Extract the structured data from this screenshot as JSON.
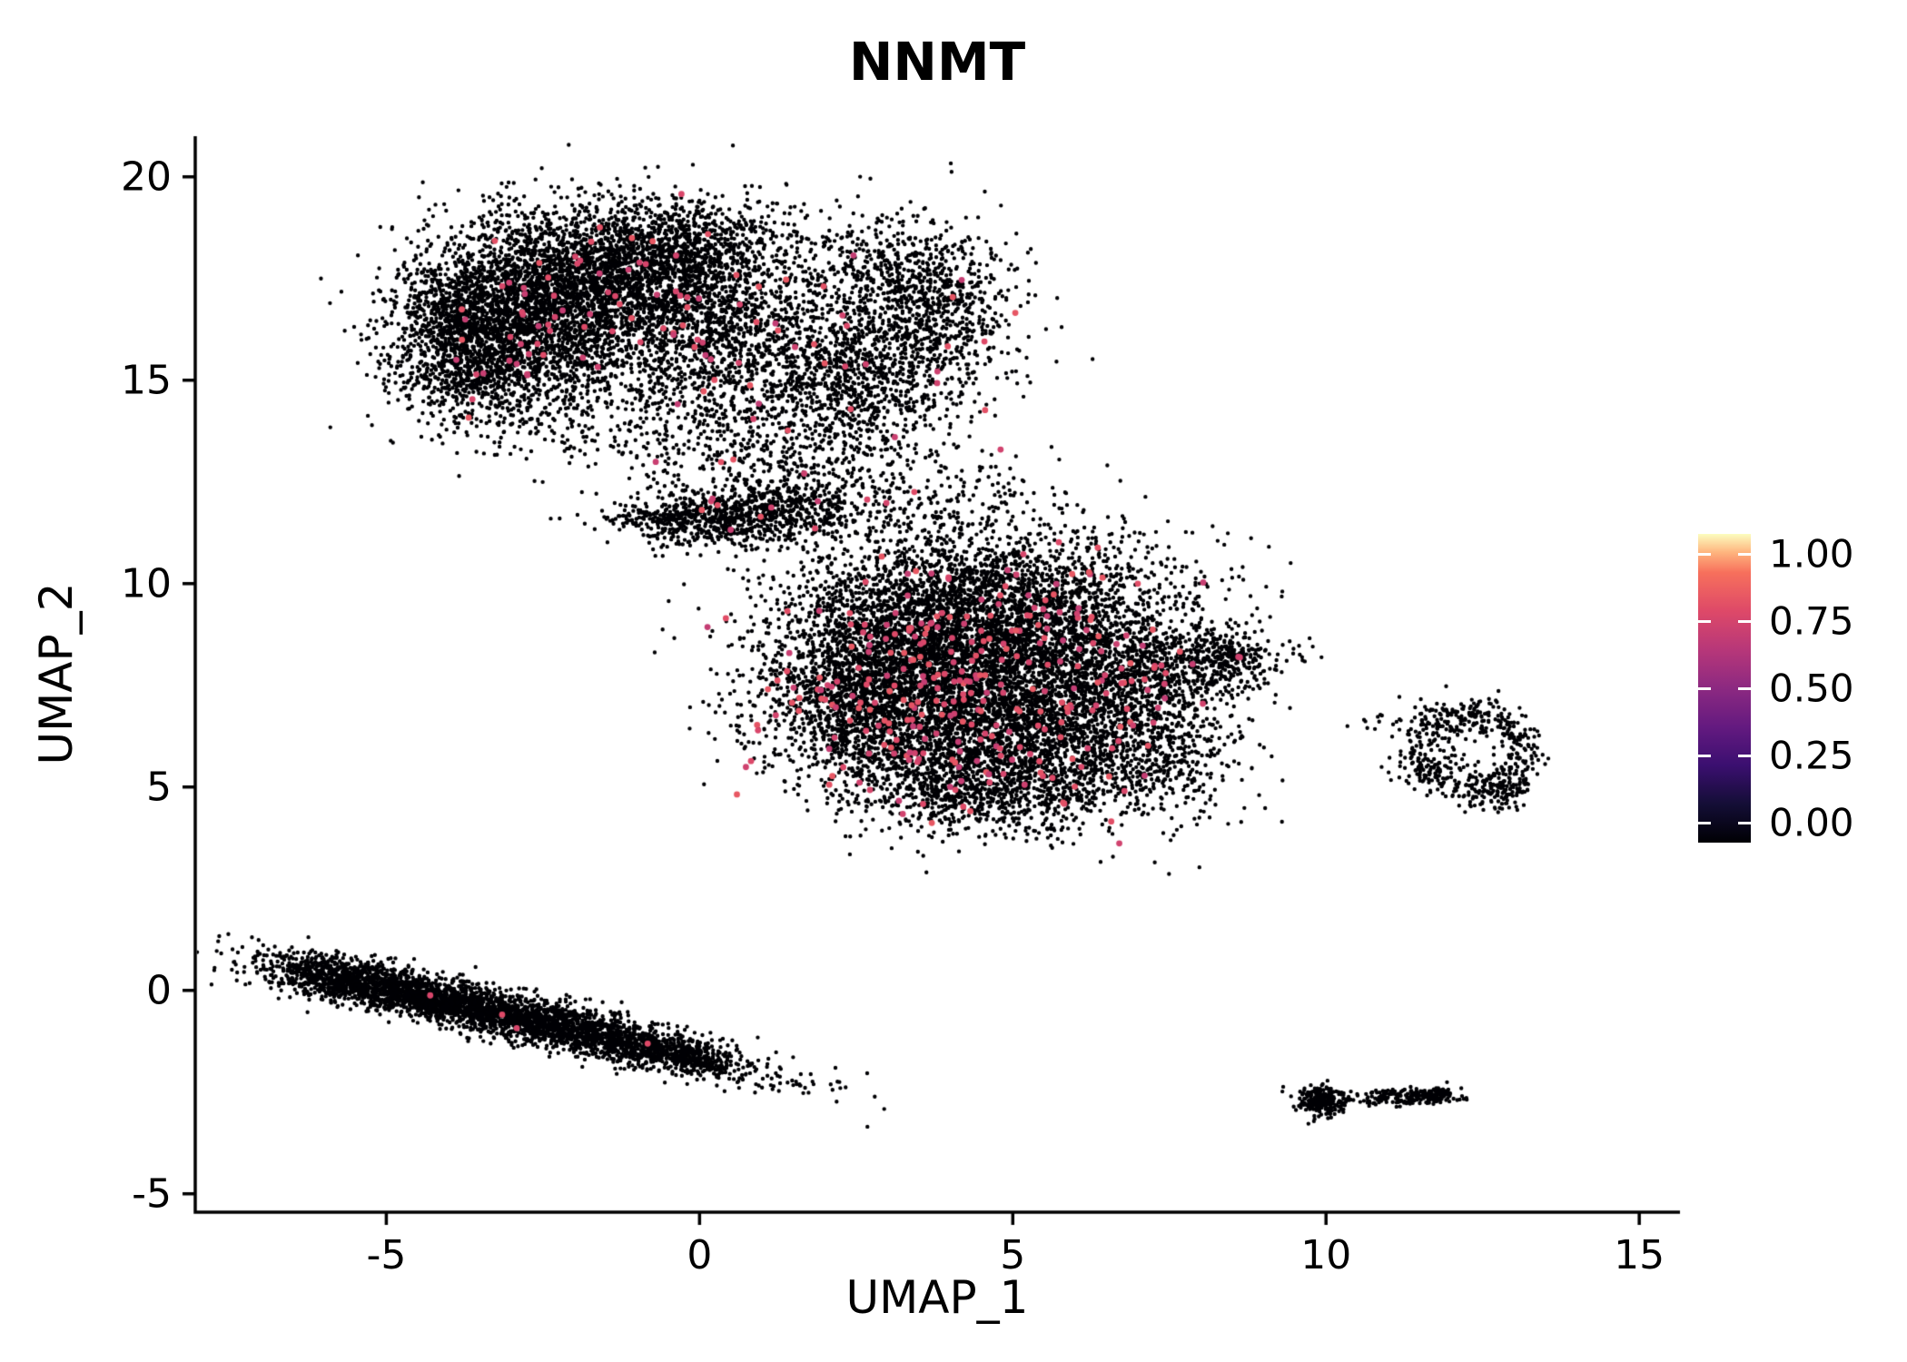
{
  "title": "NNMT",
  "axes": {
    "xlabel": "UMAP_1",
    "ylabel": "UMAP_2",
    "xtick_labels": [
      "-5",
      "0",
      "5",
      "10",
      "15"
    ],
    "xtick_values": [
      -5,
      0,
      5,
      10,
      15
    ],
    "ytick_labels": [
      "-5",
      "0",
      "5",
      "10",
      "15",
      "20"
    ],
    "ytick_values": [
      -5,
      0,
      5,
      10,
      15,
      20
    ],
    "axis_color": "#000000"
  },
  "colorbar": {
    "labels": [
      "1.00",
      "0.75",
      "0.50",
      "0.25",
      "0.00"
    ],
    "values": [
      1.0,
      0.75,
      0.5,
      0.25,
      0.0
    ],
    "position": "right"
  },
  "chart_data": {
    "type": "scatter",
    "title": "NNMT",
    "xlabel": "UMAP_1",
    "ylabel": "UMAP_2",
    "xlim": [
      -8.05,
      15.65
    ],
    "ylim": [
      -5.45,
      21.0
    ],
    "xticks": [
      -5,
      0,
      5,
      10,
      15
    ],
    "yticks": [
      -5,
      0,
      5,
      10,
      15,
      20
    ],
    "grid": false,
    "legend_position": "right",
    "colormap": {
      "name": "magma",
      "stops": [
        {
          "t": 0.0,
          "c": "#000004"
        },
        {
          "t": 0.125,
          "c": "#140e36"
        },
        {
          "t": 0.25,
          "c": "#3b0f70"
        },
        {
          "t": 0.375,
          "c": "#641a80"
        },
        {
          "t": 0.5,
          "c": "#8c2981"
        },
        {
          "t": 0.625,
          "c": "#b73779"
        },
        {
          "t": 0.75,
          "c": "#de4968"
        },
        {
          "t": 0.875,
          "c": "#f7705c"
        },
        {
          "t": 0.94,
          "c": "#feb47e"
        },
        {
          "t": 1.0,
          "c": "#fcfdbf"
        }
      ]
    },
    "background_point_color": "#000004",
    "background_point_radius": 2.2,
    "expressing_point_radius": 3.4,
    "expressing_value_range": [
      0.66,
      0.8
    ],
    "clusters": [
      {
        "name": "upper-left-lobe",
        "black": [
          [
            -2.6,
            16.8,
            1.05,
            1.15,
            2500
          ],
          [
            -1.2,
            17.5,
            1.15,
            0.85,
            1700
          ],
          [
            -3.5,
            15.4,
            0.75,
            0.75,
            850
          ],
          [
            0.3,
            16.2,
            1.0,
            1.15,
            1200
          ],
          [
            -3.9,
            16.6,
            0.5,
            0.8,
            400
          ],
          [
            -0.2,
            18.6,
            0.9,
            0.5,
            500
          ]
        ],
        "red": [
          [
            -2.6,
            16.8,
            1.1,
            1.2,
            30
          ],
          [
            -1.2,
            17.6,
            1.2,
            0.9,
            24
          ],
          [
            0.3,
            16.2,
            1.0,
            1.2,
            22
          ],
          [
            -3.3,
            15.4,
            0.7,
            0.7,
            9
          ]
        ]
      },
      {
        "name": "upper-right-lobe",
        "black": [
          [
            3.0,
            16.2,
            0.95,
            1.25,
            950
          ],
          [
            3.9,
            16.8,
            0.55,
            0.8,
            330
          ],
          [
            2.2,
            14.8,
            0.8,
            0.8,
            420
          ],
          [
            3.3,
            18.0,
            0.6,
            0.5,
            180
          ]
        ],
        "red": [
          [
            3.0,
            16.1,
            1.0,
            1.3,
            16
          ]
        ]
      },
      {
        "name": "upper-bottom-fringe",
        "black": [
          [
            -0.5,
            13.9,
            1.5,
            0.7,
            320
          ],
          [
            1.4,
            13.0,
            1.1,
            0.8,
            230
          ],
          [
            2.8,
            13.6,
            0.7,
            0.7,
            80
          ]
        ],
        "red": [
          [
            0.8,
            13.9,
            1.2,
            0.7,
            8
          ]
        ]
      },
      {
        "name": "neck",
        "black": [
          [
            0.2,
            11.6,
            0.85,
            0.35,
            650
          ],
          [
            1.4,
            11.9,
            0.6,
            0.4,
            280
          ],
          [
            3.1,
            11.7,
            1.1,
            0.8,
            240
          ],
          [
            5.0,
            12.2,
            0.9,
            0.6,
            70
          ],
          [
            6.5,
            11.4,
            0.5,
            0.4,
            18
          ]
        ],
        "red": [
          [
            0.3,
            11.6,
            0.8,
            0.3,
            7
          ],
          [
            2.6,
            12.0,
            1.0,
            0.7,
            6
          ]
        ]
      },
      {
        "name": "central-blob",
        "black": [
          [
            3.4,
            8.6,
            1.2,
            1.05,
            2400
          ],
          [
            5.4,
            8.8,
            1.35,
            0.95,
            2100
          ],
          [
            4.2,
            6.4,
            1.25,
            1.0,
            2100
          ],
          [
            6.3,
            6.6,
            1.0,
            0.95,
            1250
          ],
          [
            2.6,
            7.0,
            0.8,
            1.0,
            850
          ],
          [
            7.8,
            8.0,
            0.65,
            0.5,
            420
          ],
          [
            8.5,
            8.2,
            0.3,
            0.22,
            110
          ],
          [
            4.6,
            4.9,
            1.0,
            0.5,
            550
          ],
          [
            4.8,
            10.3,
            1.3,
            0.55,
            480
          ],
          [
            7.4,
            5.6,
            0.6,
            0.75,
            240
          ],
          [
            9.4,
            8.4,
            0.3,
            0.25,
            12
          ],
          [
            5.6,
            3.9,
            0.4,
            0.2,
            25
          ]
        ],
        "red": [
          [
            3.3,
            8.4,
            1.1,
            1.0,
            66
          ],
          [
            5.2,
            8.6,
            1.3,
            0.9,
            56
          ],
          [
            4.0,
            6.5,
            1.2,
            0.9,
            66
          ],
          [
            6.2,
            6.8,
            1.0,
            0.9,
            38
          ],
          [
            2.7,
            7.0,
            0.8,
            1.0,
            38
          ],
          [
            4.6,
            5.0,
            1.0,
            0.5,
            24
          ],
          [
            5.5,
            9.8,
            1.2,
            0.5,
            14
          ],
          [
            7.3,
            7.8,
            0.6,
            0.5,
            8
          ],
          [
            6.7,
            3.62,
            0.02,
            0.02,
            1
          ],
          [
            8.6,
            8.2,
            0.05,
            0.05,
            2
          ]
        ]
      },
      {
        "name": "right-ring",
        "rings": [
          [
            12.35,
            5.8,
            0.7,
            0.18,
            480,
            1.15,
            1.35
          ]
        ],
        "black": [
          [
            12.2,
            6.9,
            0.5,
            0.15,
            40
          ],
          [
            12.9,
            4.9,
            0.22,
            0.3,
            60
          ],
          [
            11.5,
            5.4,
            0.28,
            0.22,
            35
          ],
          [
            11.1,
            6.6,
            0.4,
            0.15,
            22
          ]
        ],
        "red": []
      },
      {
        "name": "lower-left-streak",
        "black": [
          [
            -2.95,
            -0.65,
            1.95,
            0.27,
            3100,
            -19
          ],
          [
            -5.8,
            0.28,
            0.5,
            0.26,
            420,
            -12
          ],
          [
            -0.4,
            -1.55,
            0.55,
            0.22,
            300,
            -19
          ],
          [
            -4.6,
            -0.05,
            0.9,
            0.3,
            500,
            -19
          ]
        ],
        "red": [
          [
            -4.3,
            -0.1,
            0.05,
            0.05,
            1
          ],
          [
            -3.2,
            -0.55,
            0.05,
            0.05,
            1
          ],
          [
            -2.9,
            -0.95,
            0.04,
            0.04,
            1
          ],
          [
            -0.85,
            -1.35,
            0.04,
            0.04,
            1
          ]
        ]
      },
      {
        "name": "bottom-right-islets",
        "black": [
          [
            9.95,
            -2.72,
            0.22,
            0.18,
            240
          ],
          [
            11.35,
            -2.6,
            0.34,
            0.09,
            170
          ],
          [
            11.78,
            -2.55,
            0.14,
            0.08,
            55
          ],
          [
            10.7,
            -2.75,
            0.05,
            0.04,
            10
          ]
        ],
        "red": []
      }
    ]
  }
}
